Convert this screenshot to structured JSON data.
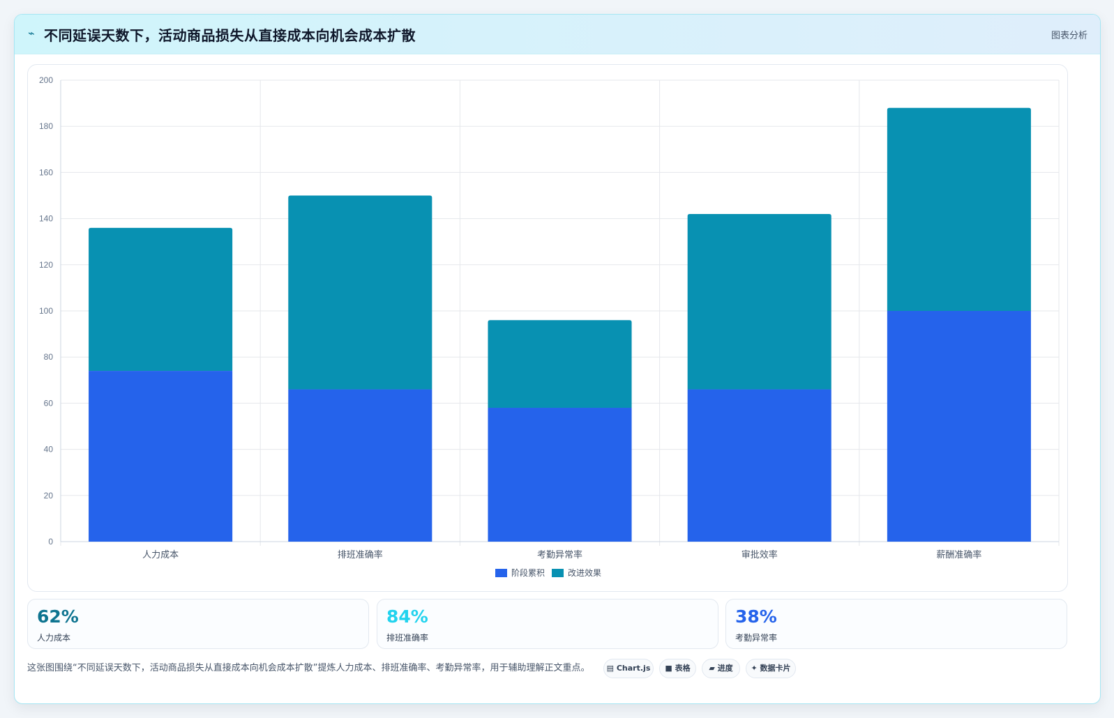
{
  "header": {
    "icon": "trend-icon",
    "title": "不同延误天数下，活动商品损失从直接成本向机会成本扩散",
    "tag": "图表分析"
  },
  "chart_data": {
    "type": "bar",
    "stacked": true,
    "categories": [
      "人力成本",
      "排班准确率",
      "考勤异常率",
      "审批效率",
      "薪酬准确率"
    ],
    "series": [
      {
        "name": "阶段累积",
        "color": "#2563eb",
        "values": [
          74,
          66,
          58,
          66,
          100
        ]
      },
      {
        "name": "改进效果",
        "color": "#0891b2",
        "values": [
          62,
          84,
          38,
          76,
          88
        ]
      }
    ],
    "ylim": [
      0,
      200
    ],
    "yticks": [
      0,
      20,
      40,
      60,
      80,
      100,
      120,
      140,
      160,
      180,
      200
    ],
    "grid": true,
    "legend_position": "bottom"
  },
  "kpis": [
    {
      "value": "62%",
      "label": "人力成本",
      "color": "#0e7490"
    },
    {
      "value": "84%",
      "label": "排班准确率",
      "color": "#22d3ee"
    },
    {
      "value": "38%",
      "label": "考勤异常率",
      "color": "#2563eb"
    }
  ],
  "footer": {
    "text": "这张图围绕“不同延误天数下，活动商品损失从直接成本向机会成本扩散”提炼人力成本、排班准确率、考勤异常率，用于辅助理解正文重点。",
    "chips": [
      {
        "icon": "chart-icon",
        "label": "Chart.js"
      },
      {
        "icon": "table-icon",
        "label": "表格"
      },
      {
        "icon": "progress-icon",
        "label": "进度"
      },
      {
        "icon": "card-icon",
        "label": "数据卡片"
      }
    ]
  }
}
